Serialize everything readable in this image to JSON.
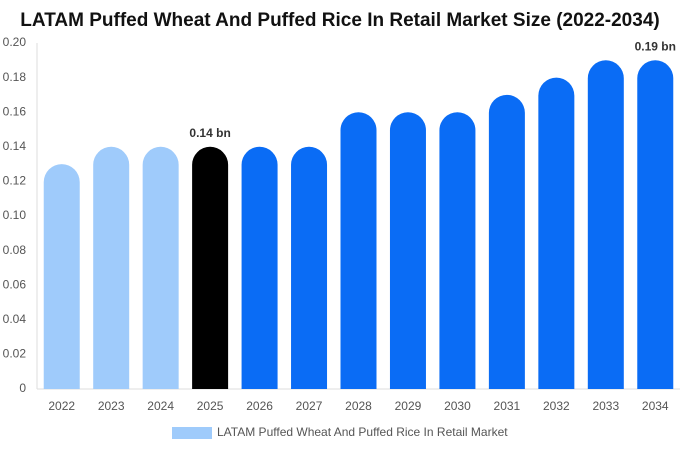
{
  "chart_data": {
    "type": "bar",
    "title": "LATAM Puffed Wheat And Puffed Rice In Retail Market Size (2022-2034)",
    "categories": [
      "2022",
      "2023",
      "2024",
      "2025",
      "2026",
      "2027",
      "2028",
      "2029",
      "2030",
      "2031",
      "2032",
      "2033",
      "2034"
    ],
    "series": [
      {
        "name": "LATAM Puffed Wheat And Puffed Rice In Retail Market",
        "color": "#9fcbfb",
        "values": [
          0.13,
          0.14,
          0.14,
          0.14,
          0.14,
          0.14,
          0.16,
          0.16,
          0.16,
          0.17,
          0.18,
          0.19,
          0.19
        ],
        "colors": [
          "#9fcbfb",
          "#9fcbfb",
          "#9fcbfb",
          "#000000",
          "#0a6cf5",
          "#0a6cf5",
          "#0a6cf5",
          "#0a6cf5",
          "#0a6cf5",
          "#0a6cf5",
          "#0a6cf5",
          "#0a6cf5",
          "#0a6cf5"
        ],
        "value_labels": [
          null,
          null,
          null,
          "0.14 bn",
          null,
          null,
          null,
          null,
          null,
          null,
          null,
          null,
          "0.19 bn"
        ]
      }
    ],
    "ylim": [
      0,
      0.2
    ],
    "yticks": [
      0,
      {
        "value": 0.02,
        "label": "0.02"
      },
      {
        "value": 0.04,
        "label": "0.04"
      },
      {
        "value": 0.06,
        "label": "0.06"
      },
      {
        "value": 0.08,
        "label": "0.08"
      },
      {
        "value": 0.1,
        "label": "0.10"
      },
      {
        "value": 0.12,
        "label": "0.12"
      },
      {
        "value": 0.14,
        "label": "0.14"
      },
      {
        "value": 0.16,
        "label": "0.16"
      },
      {
        "value": 0.18,
        "label": "0.18"
      },
      {
        "value": 0.2,
        "label": "0.20"
      }
    ],
    "grid": false
  }
}
